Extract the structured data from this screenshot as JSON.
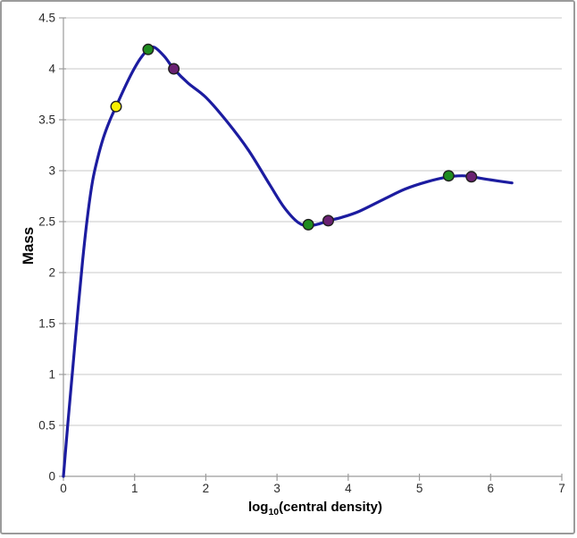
{
  "chart_data": {
    "type": "line",
    "title": "",
    "ylabel": "Mass",
    "xlabel": {
      "prefix": "log",
      "subscript": "10",
      "suffix": "(central density)"
    },
    "xlim": [
      0,
      7
    ],
    "ylim": [
      0,
      4.5
    ],
    "x_ticks": [
      0,
      1,
      2,
      3,
      4,
      5,
      6,
      7
    ],
    "y_ticks": [
      0,
      0.5,
      1,
      1.5,
      2,
      2.5,
      3,
      3.5,
      4,
      4.5
    ],
    "grid": "horizontal-only",
    "legend": "none",
    "series": [
      {
        "name": "mass-curve",
        "kind": "smooth-line",
        "color": "#1c1ca0",
        "stroke_width": 3.2,
        "points": [
          [
            0,
            0
          ],
          [
            0.06,
            0.5
          ],
          [
            0.13,
            1.05
          ],
          [
            0.2,
            1.6
          ],
          [
            0.27,
            2.12
          ],
          [
            0.34,
            2.56
          ],
          [
            0.41,
            2.9
          ],
          [
            0.48,
            3.12
          ],
          [
            0.56,
            3.32
          ],
          [
            0.65,
            3.49
          ],
          [
            0.74,
            3.63
          ],
          [
            0.85,
            3.8
          ],
          [
            0.97,
            3.97
          ],
          [
            1.08,
            4.1
          ],
          [
            1.19,
            4.19
          ],
          [
            1.28,
            4.21
          ],
          [
            1.42,
            4.12
          ],
          [
            1.55,
            4.0
          ],
          [
            1.75,
            3.86
          ],
          [
            2.0,
            3.72
          ],
          [
            2.3,
            3.48
          ],
          [
            2.6,
            3.2
          ],
          [
            2.9,
            2.86
          ],
          [
            3.1,
            2.64
          ],
          [
            3.3,
            2.49
          ],
          [
            3.45,
            2.46
          ],
          [
            3.6,
            2.48
          ],
          [
            3.72,
            2.51
          ],
          [
            3.9,
            2.54
          ],
          [
            4.15,
            2.6
          ],
          [
            4.5,
            2.72
          ],
          [
            4.8,
            2.82
          ],
          [
            5.1,
            2.89
          ],
          [
            5.41,
            2.94
          ],
          [
            5.6,
            2.95
          ],
          [
            5.73,
            2.94
          ],
          [
            6.0,
            2.91
          ],
          [
            6.3,
            2.88
          ]
        ]
      },
      {
        "name": "yellow-point",
        "kind": "markers",
        "color": "#f8ef00",
        "points": [
          [
            0.74,
            3.63
          ]
        ]
      },
      {
        "name": "green-point",
        "kind": "markers",
        "color": "#1f8c1f",
        "points": [
          [
            1.19,
            4.19
          ],
          [
            3.44,
            2.47
          ],
          [
            5.41,
            2.95
          ]
        ]
      },
      {
        "name": "purple-point",
        "kind": "markers",
        "color": "#6a2172",
        "points": [
          [
            1.55,
            4.0
          ],
          [
            3.72,
            2.51
          ],
          [
            5.73,
            2.94
          ]
        ]
      }
    ],
    "marker_radius": 5.8,
    "marker_outline": "#1f1f1f",
    "colors": {
      "curve": "#1c1ca0",
      "gridline": "#c9c9c9",
      "axis": "#9b9b9b",
      "tick_label": "#2b2b2b",
      "axis_title": "#000000",
      "frame_border": "#9b9b9b",
      "background": "#ffffff"
    }
  }
}
